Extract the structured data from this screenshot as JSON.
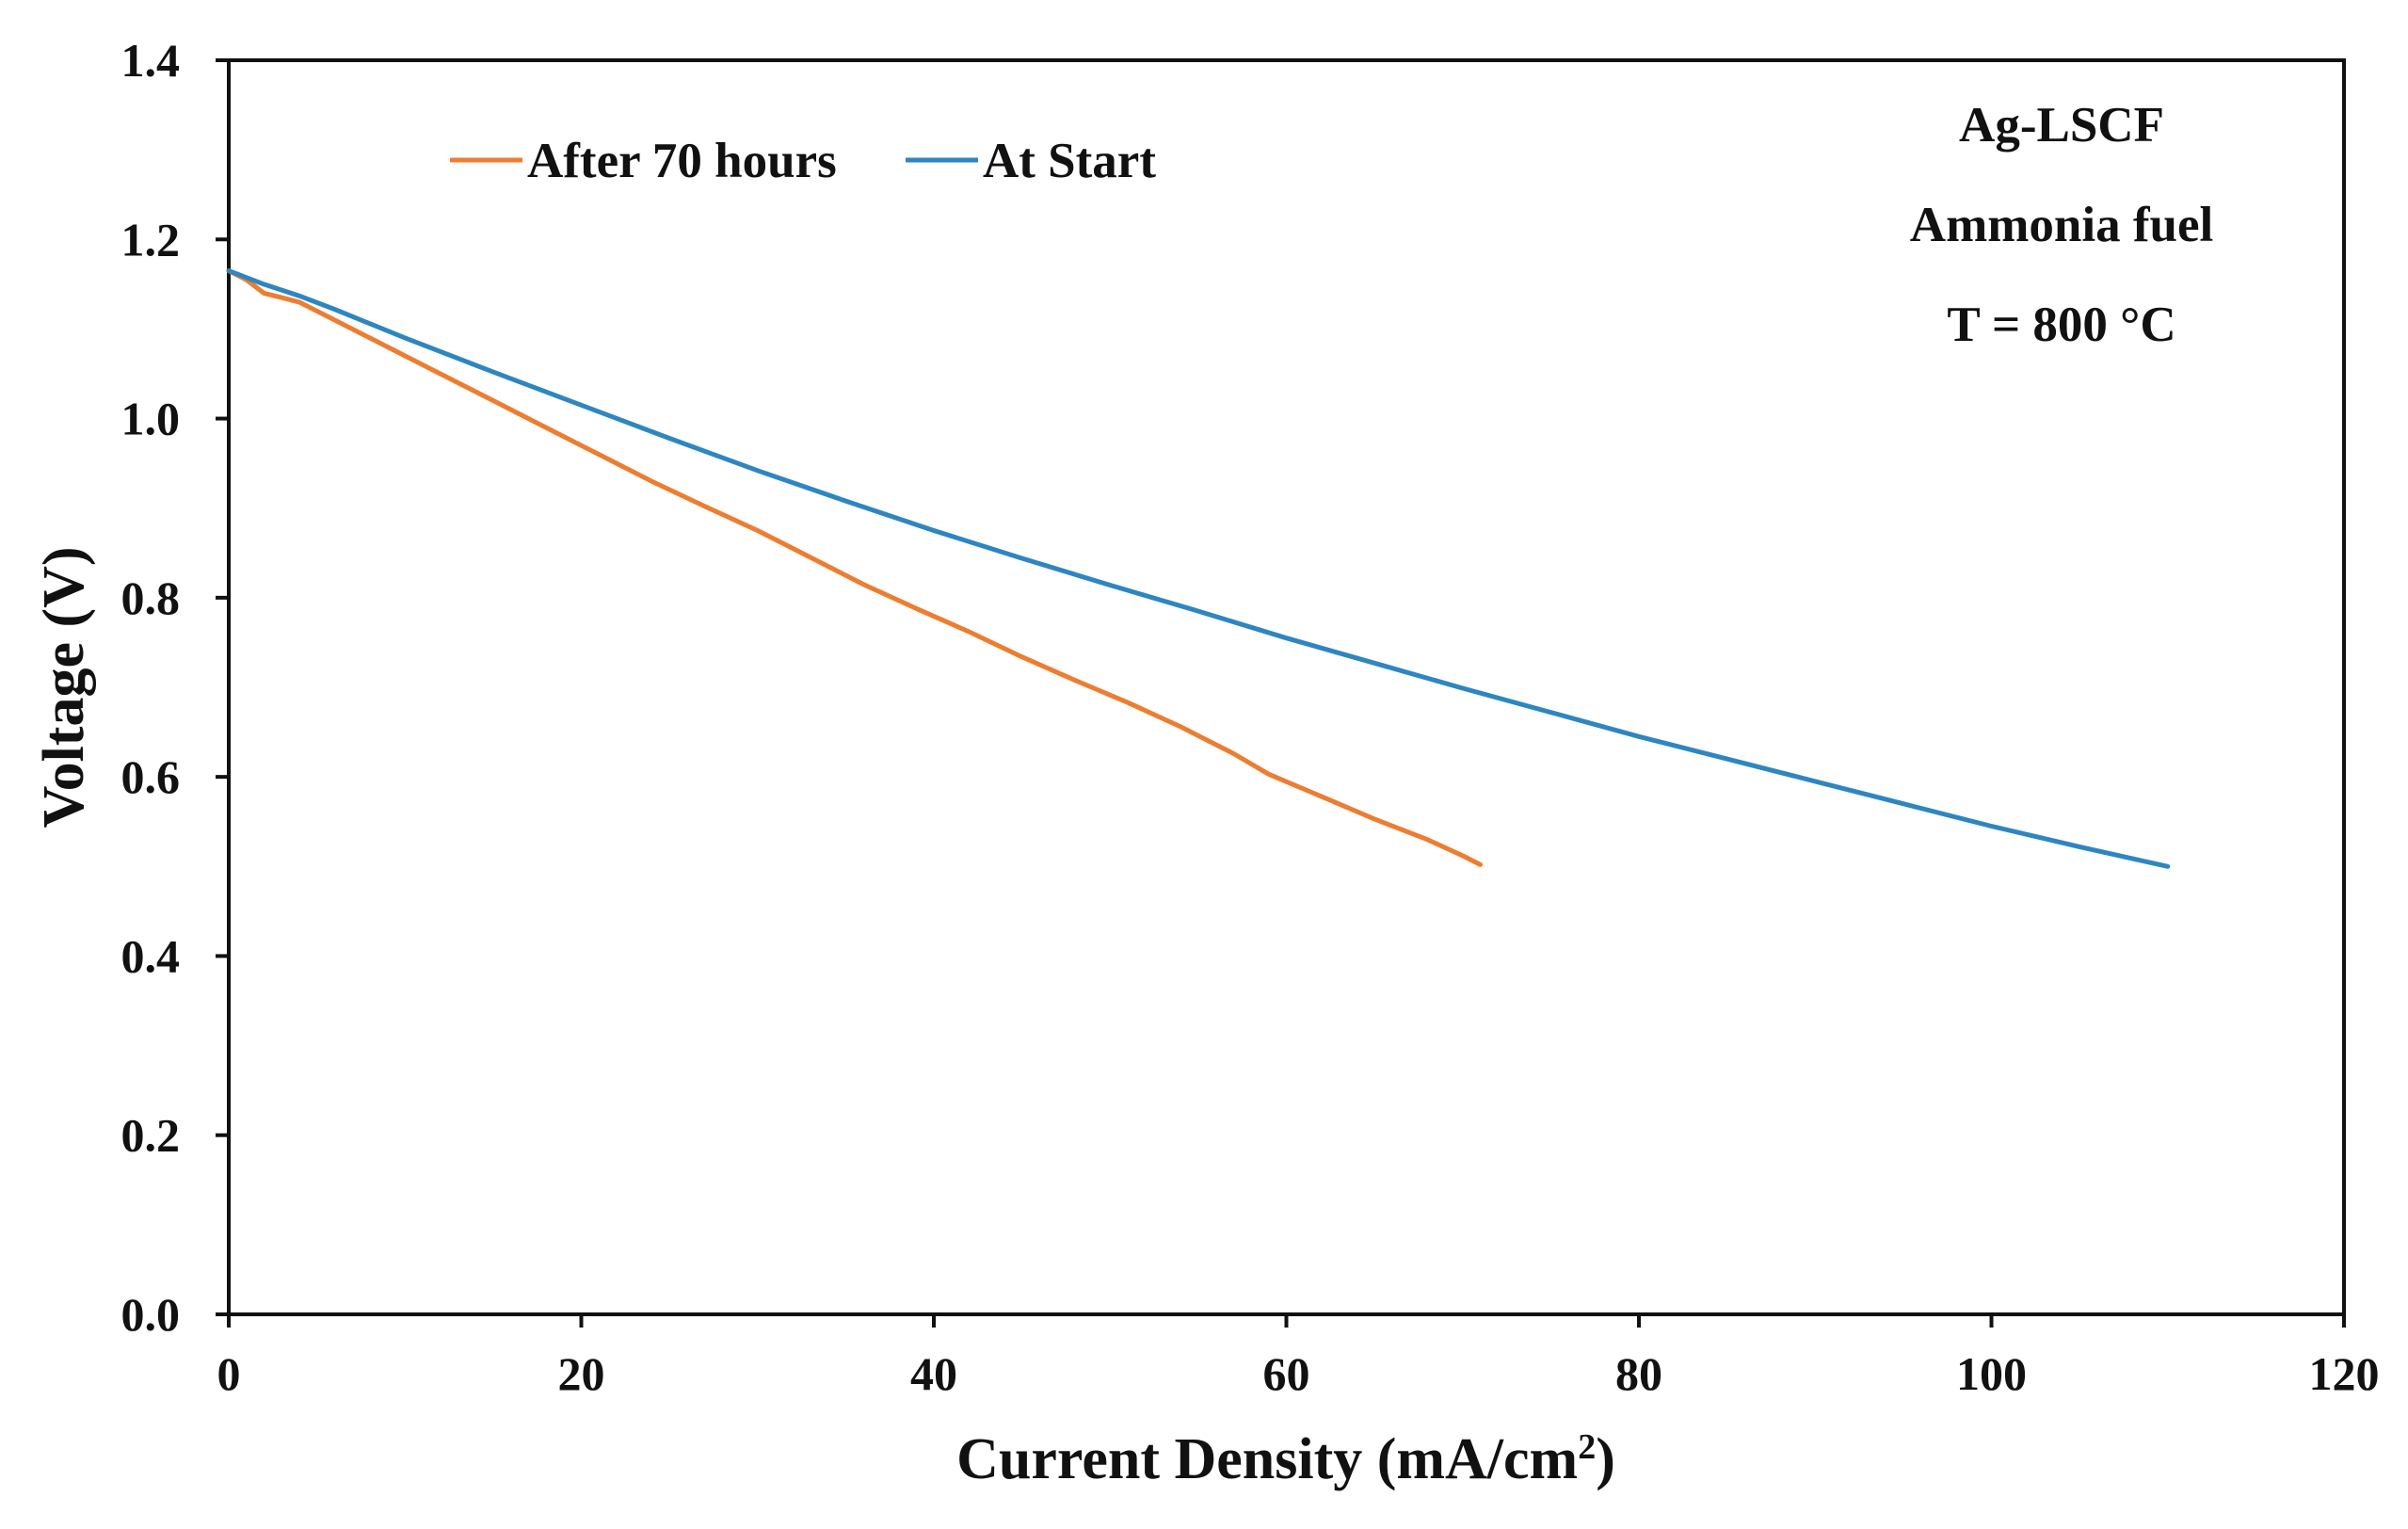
{
  "chart_data": {
    "type": "line",
    "title": "",
    "xlabel": "Current Density (mA/cm",
    "xlabel_sup": "2",
    "xlabel_close": ")",
    "ylabel": "Voltage (V)",
    "xlim": [
      0,
      120
    ],
    "ylim": [
      0,
      1.4
    ],
    "xticks": [
      0,
      20,
      40,
      60,
      80,
      100,
      120
    ],
    "xtick_labels": [
      "0",
      "20",
      "40",
      "60",
      "80",
      "100",
      "120"
    ],
    "yticks": [
      0,
      0.2,
      0.4,
      0.6,
      0.8,
      1.0,
      1.2,
      1.4
    ],
    "ytick_labels": [
      "0.0",
      "0.2",
      "0.4",
      "0.6",
      "0.8",
      "1.0",
      "1.2",
      "1.4"
    ],
    "grid": false,
    "legend_position": "top-left",
    "annotations": [
      "Ag-LSCF",
      "Ammonia fuel",
      "T = 800 °C"
    ],
    "series": [
      {
        "name": "After 70 hours",
        "color": "#ED7D31",
        "x": [
          0,
          1,
          2,
          3,
          4,
          6,
          8,
          10,
          12,
          15,
          18,
          21,
          24,
          27,
          30,
          33,
          36,
          39,
          42,
          45,
          48,
          51,
          54,
          57,
          59,
          62,
          65,
          68,
          70,
          71
        ],
        "y": [
          1.165,
          1.155,
          1.14,
          1.135,
          1.13,
          1.11,
          1.09,
          1.07,
          1.05,
          1.02,
          0.99,
          0.96,
          0.93,
          0.902,
          0.875,
          0.845,
          0.815,
          0.788,
          0.762,
          0.734,
          0.708,
          0.683,
          0.656,
          0.626,
          0.603,
          0.578,
          0.553,
          0.53,
          0.512,
          0.502
        ]
      },
      {
        "name": "At Start",
        "color": "#2E86C1",
        "x": [
          0,
          2,
          4,
          6,
          10,
          15,
          20,
          25,
          30,
          35,
          40,
          45,
          50,
          55,
          60,
          65,
          70,
          75,
          80,
          85,
          90,
          95,
          100,
          105,
          110
        ],
        "y": [
          1.165,
          1.15,
          1.137,
          1.122,
          1.09,
          1.052,
          1.015,
          0.978,
          0.942,
          0.908,
          0.875,
          0.844,
          0.814,
          0.785,
          0.755,
          0.727,
          0.699,
          0.672,
          0.645,
          0.62,
          0.595,
          0.57,
          0.545,
          0.522,
          0.5
        ]
      }
    ]
  }
}
